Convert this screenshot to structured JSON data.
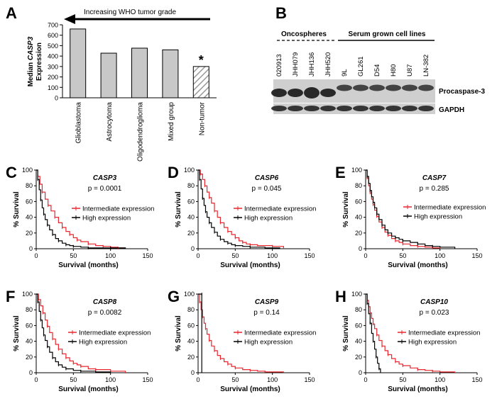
{
  "colors": {
    "intermediate": "#e8262d",
    "high": "#000000",
    "bar_fill": "#c8c8c8",
    "hatch": "#9a9a9a"
  },
  "panel_a": {
    "letter": "A",
    "arrow_label": "Increasing WHO tumor grade",
    "ylabel_prefix": "Median ",
    "ylabel_gene": "CASP3",
    "ylabel_line2": "Expression",
    "asterisk": "*",
    "chart_data": {
      "type": "bar",
      "categories": [
        "Glioblastoma",
        "Astrocytoma",
        "Oligodendroglioma",
        "Mixed group",
        "Non-tumor"
      ],
      "values": [
        660,
        428,
        476,
        460,
        300
      ],
      "ylim": [
        0,
        700
      ],
      "yticks": [
        0,
        100,
        200,
        300,
        400,
        500,
        600,
        700
      ],
      "hatched_category": "Non-tumor",
      "significance_marker": {
        "category": "Non-tumor",
        "label": "*"
      }
    }
  },
  "panel_b": {
    "letter": "B",
    "group1_label": "Oncospheres",
    "group2_label": "Serum grown cell lines",
    "lanes": [
      "020913",
      "JHH079",
      "JHH136",
      "JHH520",
      "9L",
      "GL261",
      "D54",
      "H80",
      "U87",
      "LN-382"
    ],
    "band1_label": "Procaspase-3",
    "band2_label": "GAPDH"
  },
  "survival_common": {
    "xlabel": "Survival (months)",
    "ylabel": "% Survival",
    "intermediate_label": "Intermediate expression",
    "high_label": "High expression",
    "xticks": [
      0,
      50,
      100,
      150
    ],
    "yticks": [
      0,
      20,
      40,
      60,
      80,
      100
    ],
    "xlim": [
      0,
      150
    ],
    "ylim": [
      0,
      100
    ]
  },
  "panels": [
    {
      "letter": "C",
      "gene": "CASP3",
      "pvalue": "p = 0.0001",
      "chart_data": {
        "type": "line",
        "xlabel": "Survival (months)",
        "ylabel": "% Survival",
        "xlim": [
          0,
          150
        ],
        "ylim": [
          0,
          100
        ],
        "series": [
          {
            "name": "Intermediate expression",
            "x": [
              0,
              2,
              5,
              8,
              12,
              16,
              20,
              25,
              30,
              35,
              40,
              45,
              50,
              55,
              60,
              70,
              80,
              90,
              100,
              110,
              120
            ],
            "y": [
              100,
              92,
              82,
              72,
              63,
              55,
              48,
              40,
              33,
              27,
              22,
              18,
              14,
              11,
              9,
              6,
              4,
              3,
              2,
              1,
              0
            ]
          },
          {
            "name": "High expression",
            "x": [
              0,
              2,
              4,
              6,
              8,
              10,
              12,
              15,
              18,
              22,
              26,
              30,
              35,
              40,
              45,
              50,
              60,
              70,
              80,
              100,
              120
            ],
            "y": [
              100,
              88,
              75,
              62,
              52,
              44,
              37,
              30,
              24,
              18,
              13,
              10,
              7,
              5,
              4,
              3,
              2,
              1,
              1,
              1,
              0
            ]
          }
        ]
      }
    },
    {
      "letter": "D",
      "gene": "CASP6",
      "pvalue": "p = 0.045",
      "chart_data": {
        "type": "line",
        "xlabel": "Survival (months)",
        "ylabel": "% Survival",
        "xlim": [
          0,
          150
        ],
        "ylim": [
          0,
          100
        ],
        "series": [
          {
            "name": "Intermediate expression",
            "x": [
              0,
              3,
              6,
              9,
              12,
              15,
              18,
              22,
              26,
              30,
              35,
              40,
              45,
              50,
              55,
              60,
              65,
              70,
              80,
              100,
              115
            ],
            "y": [
              100,
              95,
              88,
              80,
              72,
              65,
              58,
              48,
              40,
              33,
              27,
              22,
              18,
              14,
              10,
              8,
              6,
              5,
              4,
              3,
              0
            ]
          },
          {
            "name": "High expression",
            "x": [
              0,
              2,
              4,
              6,
              8,
              10,
              12,
              15,
              18,
              22,
              26,
              30,
              35,
              40,
              45,
              50,
              60,
              70,
              90,
              110
            ],
            "y": [
              100,
              88,
              76,
              64,
              55,
              47,
              40,
              33,
              27,
              21,
              16,
              12,
              9,
              7,
              5,
              4,
              3,
              2,
              1,
              0
            ]
          }
        ]
      }
    },
    {
      "letter": "E",
      "gene": "CASP7",
      "pvalue": "p = 0.285",
      "chart_data": {
        "type": "line",
        "xlabel": "Survival (months)",
        "ylabel": "% Survival",
        "xlim": [
          0,
          150
        ],
        "ylim": [
          0,
          100
        ],
        "series": [
          {
            "name": "Intermediate expression",
            "x": [
              0,
              2,
              4,
              6,
              8,
              10,
              12,
              15,
              18,
              22,
              26,
              30,
              35,
              40,
              45,
              50,
              60,
              70,
              80,
              90,
              100
            ],
            "y": [
              100,
              90,
              80,
              71,
              63,
              56,
              49,
              41,
              34,
              27,
              21,
              17,
              13,
              10,
              8,
              6,
              4,
              3,
              2,
              1,
              0
            ]
          },
          {
            "name": "High expression",
            "x": [
              0,
              2,
              4,
              6,
              8,
              10,
              12,
              15,
              18,
              22,
              26,
              30,
              35,
              40,
              45,
              50,
              60,
              70,
              80,
              90,
              100,
              120
            ],
            "y": [
              100,
              92,
              83,
              74,
              66,
              59,
              52,
              44,
              37,
              30,
              24,
              20,
              16,
              14,
              12,
              10,
              8,
              6,
              4,
              3,
              2,
              0
            ]
          }
        ]
      }
    },
    {
      "letter": "F",
      "gene": "CASP8",
      "pvalue": "p = 0.0082",
      "chart_data": {
        "type": "line",
        "xlabel": "Survival (months)",
        "ylabel": "% Survival",
        "xlim": [
          0,
          150
        ],
        "ylim": [
          0,
          100
        ],
        "series": [
          {
            "name": "Intermediate expression",
            "x": [
              0,
              3,
              6,
              9,
              12,
              15,
              18,
              22,
              26,
              30,
              35,
              40,
              45,
              50,
              55,
              60,
              70,
              80,
              100,
              120
            ],
            "y": [
              100,
              93,
              85,
              76,
              67,
              59,
              51,
              43,
              36,
              30,
              24,
              19,
              15,
              12,
              10,
              8,
              5,
              4,
              2,
              0
            ]
          },
          {
            "name": "High expression",
            "x": [
              0,
              2,
              4,
              6,
              8,
              10,
              12,
              15,
              18,
              22,
              26,
              30,
              35,
              40,
              50,
              60,
              80,
              100
            ],
            "y": [
              100,
              90,
              78,
              67,
              57,
              48,
              41,
              33,
              26,
              19,
              14,
              10,
              7,
              5,
              3,
              2,
              1,
              0
            ]
          }
        ]
      }
    },
    {
      "letter": "G",
      "gene": "CASP9",
      "pvalue": "p = 0.14",
      "chart_data": {
        "type": "line",
        "xlabel": "Survival (months)",
        "ylabel": "% Survival",
        "xlim": [
          0,
          150
        ],
        "ylim": [
          0,
          100
        ],
        "series": [
          {
            "name": "Intermediate expression",
            "x": [
              0,
              2,
              4,
              6,
              8,
              10,
              12,
              15,
              18,
              22,
              26,
              30,
              35,
              40,
              45,
              50,
              60,
              70,
              80,
              90,
              100,
              115
            ],
            "y": [
              100,
              90,
              80,
              71,
              63,
              56,
              49,
              41,
              34,
              28,
              22,
              18,
              14,
              11,
              8,
              6,
              4,
              3,
              2,
              1,
              1,
              0
            ]
          },
          {
            "name": "High expression",
            "x": [
              0,
              5,
              5
            ],
            "y": [
              100,
              100,
              0
            ]
          }
        ]
      }
    },
    {
      "letter": "H",
      "gene": "CASP10",
      "pvalue": "p = 0.023",
      "chart_data": {
        "type": "line",
        "xlabel": "Survival (months)",
        "ylabel": "% Survival",
        "xlim": [
          0,
          150
        ],
        "ylim": [
          0,
          100
        ],
        "series": [
          {
            "name": "Intermediate expression",
            "x": [
              0,
              2,
              4,
              6,
              8,
              10,
              12,
              15,
              18,
              22,
              26,
              30,
              35,
              40,
              45,
              50,
              60,
              70,
              80,
              90,
              100,
              120
            ],
            "y": [
              100,
              92,
              84,
              76,
              69,
              62,
              56,
              48,
              41,
              34,
              28,
              23,
              18,
              14,
              11,
              9,
              6,
              4,
              3,
              2,
              1,
              0
            ]
          },
          {
            "name": "High expression",
            "x": [
              0,
              2,
              4,
              6,
              8,
              10,
              12,
              14,
              16,
              18,
              20
            ],
            "y": [
              100,
              88,
              75,
              63,
              50,
              40,
              30,
              20,
              12,
              5,
              0
            ]
          }
        ]
      }
    }
  ]
}
